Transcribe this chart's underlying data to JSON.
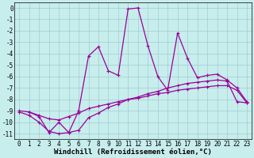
{
  "xlabel": "Windchill (Refroidissement éolien,°C)",
  "xlim": [
    -0.5,
    23.5
  ],
  "ylim": [
    -11.5,
    0.5
  ],
  "ytick_vals": [
    0,
    -1,
    -2,
    -3,
    -4,
    -5,
    -6,
    -7,
    -8,
    -9,
    -10,
    -11
  ],
  "xtick_vals": [
    0,
    1,
    2,
    3,
    4,
    5,
    6,
    7,
    8,
    9,
    10,
    11,
    12,
    13,
    14,
    15,
    16,
    17,
    18,
    19,
    20,
    21,
    22,
    23
  ],
  "background_color": "#c8eded",
  "grid_color": "#9ecece",
  "line_color": "#990099",
  "line1_x": [
    0,
    1,
    2,
    3,
    4,
    5,
    6,
    7,
    8,
    9,
    10,
    11,
    12,
    13,
    14,
    15,
    16,
    17,
    18,
    19,
    20,
    21,
    22,
    23
  ],
  "line1_y": [
    -9.0,
    -9.1,
    -9.4,
    -9.7,
    -9.8,
    -9.5,
    -9.2,
    -8.8,
    -8.6,
    -8.4,
    -8.2,
    -8.0,
    -7.9,
    -7.7,
    -7.5,
    -7.4,
    -7.2,
    -7.1,
    -7.0,
    -6.9,
    -6.8,
    -6.8,
    -7.2,
    -8.3
  ],
  "line2_x": [
    0,
    1,
    2,
    3,
    4,
    5,
    6,
    7,
    8,
    9,
    10,
    11,
    12,
    13,
    14,
    15,
    16,
    17,
    18,
    19,
    20,
    21,
    22,
    23
  ],
  "line2_y": [
    -9.1,
    -9.4,
    -10.0,
    -10.8,
    -11.0,
    -10.9,
    -10.7,
    -9.6,
    -9.2,
    -8.7,
    -8.4,
    -8.0,
    -7.8,
    -7.5,
    -7.3,
    -7.0,
    -6.8,
    -6.6,
    -6.5,
    -6.4,
    -6.3,
    -6.4,
    -8.2,
    -8.3
  ],
  "line3_x": [
    1,
    2,
    3,
    4,
    5,
    6,
    7,
    8,
    9,
    10,
    11,
    12,
    13,
    14,
    15,
    16,
    17,
    18,
    19,
    20,
    21,
    22,
    23
  ],
  "line3_y": [
    -9.1,
    -9.5,
    -10.9,
    -10.0,
    -10.9,
    -9.0,
    -4.2,
    -3.4,
    -5.5,
    -5.9,
    -0.1,
    0.0,
    -3.3,
    -6.0,
    -7.2,
    -2.2,
    -4.4,
    -6.1,
    -5.9,
    -5.8,
    -6.3,
    -7.0,
    -8.2
  ],
  "tickfontsize": 5.5,
  "xlabel_fontsize": 6.5
}
